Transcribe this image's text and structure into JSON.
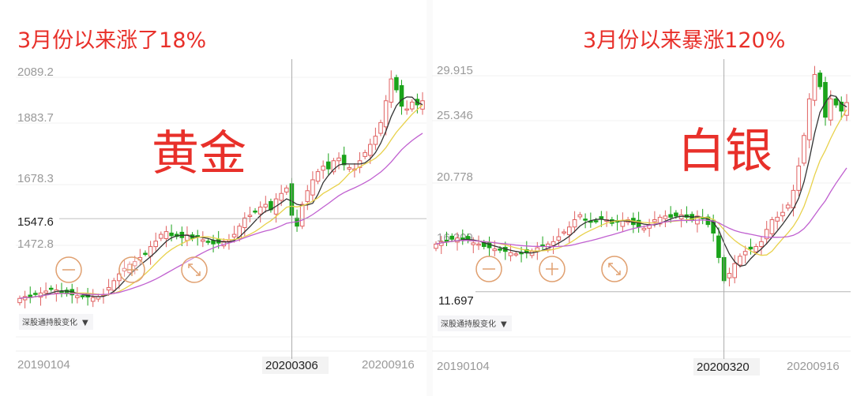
{
  "colors": {
    "up": "#e06060",
    "down": "#1aa31a",
    "ma5": "#333333",
    "ma10": "#e8d14a",
    "ma20": "#c060d0",
    "headline": "#e8302a",
    "zoom_btn": "#e0a070"
  },
  "chart_data": [
    {
      "type": "candlestick",
      "headline": "3月份以来涨了18%",
      "title": "黄金",
      "y_ticks": [
        "2089.2",
        "1883.7",
        "1678.3",
        "1472.8"
      ],
      "y_tick_values": [
        2089.2,
        1883.7,
        1678.3,
        1472.8
      ],
      "crosshair_value": "1547.6",
      "crosshair_date": "20200306",
      "x_labels": [
        "20190104",
        "20200306",
        "20200916"
      ],
      "ylim": [
        1240,
        2110
      ],
      "crosshair_index": 52,
      "indicator_dropdown": "深股通持股变化",
      "close": [
        1255,
        1262,
        1258,
        1270,
        1275,
        1282,
        1290,
        1286,
        1280,
        1272,
        1268,
        1265,
        1262,
        1260,
        1258,
        1262,
        1270,
        1295,
        1320,
        1345,
        1365,
        1380,
        1390,
        1405,
        1420,
        1445,
        1465,
        1490,
        1500,
        1485,
        1482,
        1478,
        1488,
        1475,
        1480,
        1470,
        1462,
        1455,
        1458,
        1465,
        1470,
        1490,
        1520,
        1550,
        1560,
        1575,
        1590,
        1600,
        1580,
        1620,
        1640,
        1660,
        1560,
        1520,
        1600,
        1650,
        1690,
        1720,
        1740,
        1730,
        1760,
        1770,
        1745,
        1735,
        1730,
        1760,
        1790,
        1820,
        1850,
        1900,
        1980,
        2060,
        2020,
        1960,
        1950,
        1975,
        1965,
        1980
      ]
    },
    {
      "type": "candlestick",
      "headline": "3月份以来暴涨120%",
      "title": "白银",
      "y_ticks": [
        "29.915",
        "25.346",
        "20.778",
        "16.209"
      ],
      "y_tick_values": [
        29.915,
        25.346,
        20.778,
        16.209
      ],
      "crosshair_value": "11.697",
      "crosshair_date": "20200320",
      "x_labels": [
        "20190104",
        "20200320",
        "20200916"
      ],
      "ylim": [
        11.2,
        30.6
      ],
      "crosshair_index": 54,
      "indicator_dropdown": "深股通持股变化",
      "close": [
        15.6,
        15.8,
        15.9,
        16.0,
        16.1,
        16.0,
        15.9,
        15.7,
        15.6,
        15.4,
        15.3,
        15.2,
        15.1,
        15.0,
        14.9,
        14.8,
        14.8,
        14.9,
        15.0,
        15.3,
        15.5,
        15.6,
        15.8,
        16.2,
        16.6,
        17.0,
        17.6,
        18.0,
        17.6,
        17.4,
        17.5,
        17.7,
        17.6,
        17.3,
        17.4,
        17.5,
        17.6,
        17.2,
        17.0,
        16.9,
        17.2,
        17.6,
        17.8,
        17.9,
        17.8,
        17.9,
        18.0,
        17.8,
        17.6,
        17.9,
        17.7,
        17.2,
        16.5,
        14.5,
        12.6,
        13.2,
        14.0,
        14.6,
        15.0,
        15.2,
        15.4,
        15.8,
        16.8,
        17.6,
        17.8,
        18.2,
        18.8,
        20.0,
        22.0,
        24.5,
        27.5,
        29.5,
        28.5,
        26.0,
        27.5,
        27.0,
        26.5,
        27.2
      ]
    }
  ]
}
